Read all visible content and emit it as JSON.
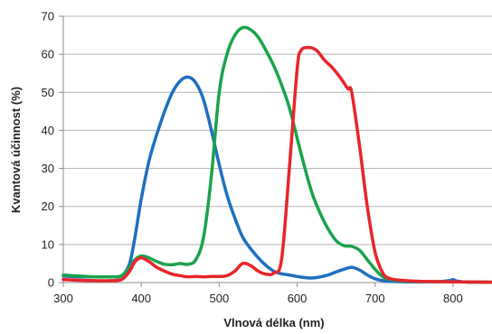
{
  "chart_data": {
    "type": "line",
    "xlabel": "Vlnová délka (nm)",
    "ylabel": "Kvantová účinnost (%)",
    "xlim": [
      300,
      850
    ],
    "ylim": [
      0,
      70
    ],
    "x_ticks": [
      300,
      400,
      500,
      600,
      700,
      800
    ],
    "y_ticks": [
      0,
      10,
      20,
      30,
      40,
      50,
      60,
      70
    ],
    "grid": "horizontal",
    "legend": "none",
    "series": [
      {
        "color": "#1f6fbf",
        "points": [
          [
            300,
            1.7
          ],
          [
            320,
            1.5
          ],
          [
            340,
            1.5
          ],
          [
            360,
            1.5
          ],
          [
            375,
            1.8
          ],
          [
            385,
            5
          ],
          [
            392,
            12
          ],
          [
            400,
            22
          ],
          [
            410,
            32
          ],
          [
            420,
            39
          ],
          [
            430,
            45
          ],
          [
            440,
            50
          ],
          [
            450,
            53
          ],
          [
            460,
            54
          ],
          [
            470,
            52.5
          ],
          [
            480,
            48
          ],
          [
            490,
            40
          ],
          [
            500,
            31
          ],
          [
            510,
            23
          ],
          [
            520,
            17
          ],
          [
            530,
            12
          ],
          [
            540,
            9
          ],
          [
            550,
            6.5
          ],
          [
            560,
            4.5
          ],
          [
            570,
            3
          ],
          [
            580,
            2.3
          ],
          [
            590,
            2
          ],
          [
            600,
            1.6
          ],
          [
            610,
            1.3
          ],
          [
            620,
            1.2
          ],
          [
            630,
            1.5
          ],
          [
            640,
            2
          ],
          [
            650,
            2.8
          ],
          [
            660,
            3.5
          ],
          [
            670,
            4
          ],
          [
            680,
            3.3
          ],
          [
            690,
            2
          ],
          [
            700,
            1
          ],
          [
            710,
            0.5
          ],
          [
            720,
            0.3
          ],
          [
            740,
            0.2
          ],
          [
            760,
            0.2
          ],
          [
            780,
            0.2
          ],
          [
            795,
            0.5
          ],
          [
            800,
            0.8
          ],
          [
            805,
            0.4
          ],
          [
            820,
            0.1
          ],
          [
            850,
            0.1
          ]
        ]
      },
      {
        "color": "#1aa34a",
        "points": [
          [
            300,
            2
          ],
          [
            320,
            1.7
          ],
          [
            340,
            1.5
          ],
          [
            360,
            1.5
          ],
          [
            375,
            1.8
          ],
          [
            385,
            4
          ],
          [
            392,
            6
          ],
          [
            400,
            7
          ],
          [
            410,
            6.5
          ],
          [
            420,
            5.5
          ],
          [
            430,
            4.8
          ],
          [
            440,
            4.7
          ],
          [
            450,
            5
          ],
          [
            460,
            4.8
          ],
          [
            470,
            6
          ],
          [
            480,
            12
          ],
          [
            490,
            28
          ],
          [
            500,
            50
          ],
          [
            510,
            60
          ],
          [
            520,
            65
          ],
          [
            530,
            67
          ],
          [
            540,
            66.5
          ],
          [
            550,
            64.5
          ],
          [
            560,
            61
          ],
          [
            570,
            57
          ],
          [
            580,
            52
          ],
          [
            590,
            46
          ],
          [
            600,
            38
          ],
          [
            610,
            30
          ],
          [
            620,
            23
          ],
          [
            630,
            18
          ],
          [
            640,
            14
          ],
          [
            650,
            11
          ],
          [
            660,
            9.7
          ],
          [
            670,
            9.5
          ],
          [
            680,
            8.5
          ],
          [
            690,
            6
          ],
          [
            700,
            3.5
          ],
          [
            710,
            1.5
          ],
          [
            720,
            0.8
          ],
          [
            730,
            0.5
          ],
          [
            750,
            0.3
          ],
          [
            800,
            0.2
          ],
          [
            850,
            0.1
          ]
        ]
      },
      {
        "color": "#e8252a",
        "points": [
          [
            300,
            0.8
          ],
          [
            320,
            0.6
          ],
          [
            340,
            0.5
          ],
          [
            360,
            0.5
          ],
          [
            375,
            0.8
          ],
          [
            385,
            3
          ],
          [
            392,
            5.5
          ],
          [
            400,
            6.5
          ],
          [
            410,
            5.5
          ],
          [
            420,
            4
          ],
          [
            430,
            3
          ],
          [
            440,
            2.2
          ],
          [
            450,
            1.8
          ],
          [
            460,
            1.5
          ],
          [
            470,
            1.6
          ],
          [
            480,
            1.5
          ],
          [
            490,
            1.6
          ],
          [
            500,
            1.6
          ],
          [
            510,
            1.8
          ],
          [
            520,
            3
          ],
          [
            530,
            5
          ],
          [
            540,
            4.5
          ],
          [
            550,
            3
          ],
          [
            560,
            2.2
          ],
          [
            570,
            2.5
          ],
          [
            580,
            6
          ],
          [
            590,
            30
          ],
          [
            600,
            56
          ],
          [
            605,
            61
          ],
          [
            615,
            61.8
          ],
          [
            625,
            61
          ],
          [
            635,
            58.5
          ],
          [
            645,
            56.5
          ],
          [
            655,
            54
          ],
          [
            665,
            51
          ],
          [
            670,
            50
          ],
          [
            680,
            36
          ],
          [
            690,
            20
          ],
          [
            700,
            8
          ],
          [
            710,
            2.5
          ],
          [
            720,
            1
          ],
          [
            740,
            0.5
          ],
          [
            760,
            0.3
          ],
          [
            800,
            0.2
          ],
          [
            850,
            0.1
          ]
        ]
      }
    ]
  }
}
